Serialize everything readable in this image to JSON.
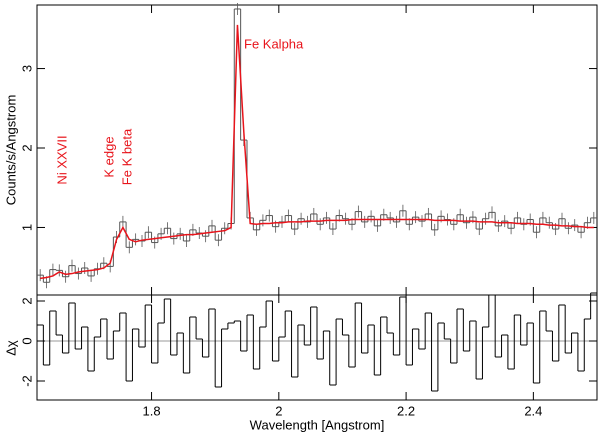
{
  "chart_data": [
    {
      "type": "step",
      "ylabel": "Counts/s/Angstrom",
      "annotations": [
        "Ni XXVII",
        "K edge",
        "Fe K beta",
        "Fe Kalpha"
      ],
      "x": [
        1.625,
        1.635,
        1.645,
        1.655,
        1.665,
        1.675,
        1.685,
        1.695,
        1.705,
        1.715,
        1.725,
        1.735,
        1.745,
        1.755,
        1.765,
        1.775,
        1.785,
        1.795,
        1.805,
        1.815,
        1.825,
        1.835,
        1.845,
        1.855,
        1.865,
        1.875,
        1.885,
        1.895,
        1.905,
        1.915,
        1.925,
        1.935,
        1.945,
        1.955,
        1.965,
        1.975,
        1.985,
        1.995,
        2.005,
        2.015,
        2.025,
        2.035,
        2.045,
        2.055,
        2.065,
        2.075,
        2.085,
        2.095,
        2.105,
        2.115,
        2.125,
        2.135,
        2.145,
        2.155,
        2.165,
        2.175,
        2.185,
        2.195,
        2.205,
        2.215,
        2.225,
        2.235,
        2.245,
        2.255,
        2.265,
        2.275,
        2.285,
        2.295,
        2.305,
        2.315,
        2.325,
        2.335,
        2.345,
        2.355,
        2.365,
        2.375,
        2.385,
        2.395,
        2.405,
        2.415,
        2.425,
        2.435,
        2.445,
        2.455,
        2.465,
        2.475,
        2.485,
        2.495
      ],
      "series": [
        {
          "color": "#555555",
          "values": [
            0.4,
            0.31,
            0.47,
            0.46,
            0.38,
            0.52,
            0.42,
            0.49,
            0.39,
            0.48,
            0.55,
            0.51,
            0.88,
            1.07,
            0.75,
            0.85,
            0.83,
            0.94,
            0.81,
            0.92,
            0.99,
            0.86,
            0.92,
            0.83,
            0.97,
            0.93,
            0.89,
            1.02,
            0.84,
            0.99,
            1.05,
            3.75,
            2.1,
            1.12,
            0.97,
            1.09,
            1.15,
            1.01,
            1.07,
            1.15,
            0.98,
            1.11,
            1.07,
            1.17,
            1.04,
            1.12,
            0.98,
            1.15,
            1.11,
            1.04,
            1.2,
            1.07,
            1.14,
            1.02,
            1.16,
            1.12,
            1.07,
            1.21,
            1.04,
            1.13,
            1.08,
            1.17,
            0.97,
            1.14,
            1.1,
            1.04,
            1.16,
            1.06,
            1.13,
            0.98,
            1.11,
            1.19,
            1.02,
            1.08,
            0.99,
            1.12,
            1.04,
            1.1,
            0.94,
            1.12,
            1.06,
            0.98,
            1.11,
            0.99,
            1.03,
            0.94,
            1.06,
            1.12
          ]
        },
        {
          "color": "#e8141b",
          "values": [
            0.36,
            0.37,
            0.39,
            0.44,
            0.41,
            0.42,
            0.44,
            0.45,
            0.46,
            0.47,
            0.49,
            0.55,
            0.85,
            1.0,
            0.85,
            0.82,
            0.84,
            0.85,
            0.86,
            0.87,
            0.88,
            0.89,
            0.9,
            0.91,
            0.91,
            0.92,
            0.93,
            0.94,
            0.95,
            0.96,
            1.0,
            3.55,
            2.2,
            1.05,
            1.04,
            1.05,
            1.05,
            1.06,
            1.06,
            1.07,
            1.07,
            1.07,
            1.08,
            1.08,
            1.08,
            1.09,
            1.09,
            1.09,
            1.09,
            1.1,
            1.1,
            1.1,
            1.1,
            1.1,
            1.1,
            1.1,
            1.1,
            1.1,
            1.1,
            1.1,
            1.1,
            1.1,
            1.09,
            1.09,
            1.09,
            1.09,
            1.08,
            1.08,
            1.08,
            1.07,
            1.07,
            1.07,
            1.06,
            1.06,
            1.06,
            1.05,
            1.05,
            1.05,
            1.04,
            1.04,
            1.03,
            1.03,
            1.02,
            1.02,
            1.01,
            1.01,
            1.0,
            1.0
          ]
        }
      ],
      "xlim": [
        1.62,
        2.5
      ],
      "xticks": [
        1.8,
        2,
        2.2,
        2.4
      ],
      "ylim": [
        0.15,
        3.8
      ],
      "yticks": [
        1,
        2,
        3
      ]
    },
    {
      "type": "step",
      "xlabel": "Wavelength [Angstrom]",
      "ylabel": "Δχ",
      "series": [
        {
          "color": "#000000",
          "values": [
            0.8,
            -1.2,
            1.5,
            0.3,
            -0.6,
            1.9,
            -0.4,
            0.7,
            -1.5,
            0.2,
            1.1,
            -0.9,
            0.5,
            1.4,
            -2.0,
            0.6,
            -0.3,
            1.8,
            -1.1,
            0.9,
            2.1,
            -0.7,
            0.4,
            -1.6,
            1.2,
            0.1,
            -0.8,
            1.6,
            -2.3,
            0.6,
            0.9,
            1.0,
            -0.5,
            1.3,
            -1.4,
            0.7,
            2.0,
            -1.0,
            0.2,
            1.5,
            -1.8,
            0.8,
            -0.2,
            1.7,
            -0.9,
            0.5,
            -2.2,
            1.1,
            0.3,
            -1.3,
            1.9,
            -0.6,
            0.8,
            -1.7,
            1.2,
            0.4,
            -0.7,
            2.2,
            -1.2,
            0.6,
            -0.4,
            1.4,
            -2.5,
            0.9,
            0.1,
            -1.1,
            1.6,
            -0.5,
            1.0,
            -1.9,
            0.7,
            2.3,
            -0.8,
            0.3,
            -1.4,
            1.3,
            -0.2,
            0.9,
            -2.1,
            1.5,
            0.5,
            -1.0,
            1.8,
            -0.6,
            0.4,
            -1.5,
            1.1,
            2.4
          ]
        }
      ],
      "xlim": [
        1.62,
        2.5
      ],
      "xticks": [
        1.8,
        2,
        2.2,
        2.4
      ],
      "ylim": [
        -2.95,
        2.3
      ],
      "yticks": [
        -2,
        0,
        2
      ]
    }
  ]
}
